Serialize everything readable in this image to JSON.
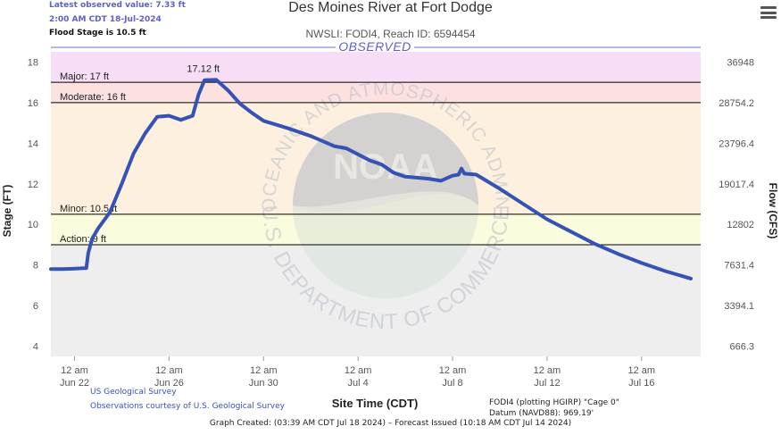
{
  "header": {
    "latest_observed_line1": "Latest observed value: 7.33 ft",
    "latest_observed_line2": "2:00 AM CDT 18-Jul-2024",
    "flood_stage_note": "Flood Stage is 10.5 ft"
  },
  "menu_icon": "hamburger-menu-icon",
  "chart_data": {
    "type": "line",
    "title": "Des Moines River at Fort Dodge",
    "subtitle": "NWSLI: FODI4, Reach ID: 6594454",
    "band_label": "OBSERVED",
    "xlabel": "Site Time (CDT)",
    "ylabel": "Stage (FT)",
    "y2label": "Flow (CFS)",
    "ylim": [
      3.5,
      18.5
    ],
    "xlim": [
      "2024-07-21 00:00",
      "2024-07-18 12:00"
    ],
    "x_ticks": [
      {
        "time": "2024-06-22 00:00",
        "line1": "12 am",
        "line2": "Jun 22"
      },
      {
        "time": "2024-06-26 00:00",
        "line1": "12 am",
        "line2": "Jun 26"
      },
      {
        "time": "2024-06-30 00:00",
        "line1": "12 am",
        "line2": "Jun 30"
      },
      {
        "time": "2024-07-04 00:00",
        "line1": "12 am",
        "line2": "Jul 4"
      },
      {
        "time": "2024-07-08 00:00",
        "line1": "12 am",
        "line2": "Jul 8"
      },
      {
        "time": "2024-07-12 00:00",
        "line1": "12 am",
        "line2": "Jul 12"
      },
      {
        "time": "2024-07-16 00:00",
        "line1": "12 am",
        "line2": "Jul 16"
      }
    ],
    "y_ticks": [
      4,
      6,
      8,
      10,
      12,
      14,
      16,
      18
    ],
    "y2_ticks": [
      {
        "stage": 4,
        "label": "666.3"
      },
      {
        "stage": 6,
        "label": "3394.1"
      },
      {
        "stage": 8,
        "label": "7631.4"
      },
      {
        "stage": 10,
        "label": "12802"
      },
      {
        "stage": 12,
        "label": "19017.4"
      },
      {
        "stage": 14,
        "label": "23796.4"
      },
      {
        "stage": 16,
        "label": "28754.2"
      },
      {
        "stage": 18,
        "label": "36948"
      }
    ],
    "flood_categories": [
      {
        "name": "Major",
        "label": "Major: 17 ft",
        "stage": 17,
        "color": "#f7ddf5"
      },
      {
        "name": "Moderate",
        "label": "Moderate: 16 ft",
        "stage": 16,
        "color": "#fde1e1"
      },
      {
        "name": "Minor",
        "label": "Minor: 10.5 ft",
        "stage": 10.5,
        "color": "#fdf0de"
      },
      {
        "name": "Action",
        "label": "Action: 9 ft",
        "stage": 9,
        "color": "#fbfbdd"
      }
    ],
    "below_action_color": "#eeeeee",
    "line_color": "#3552b5",
    "peak_label": "17.12 ft",
    "peak": {
      "time": "2024-06-27 09:00",
      "stage": 17.12
    },
    "series": [
      {
        "points": [
          [
            "2024-06-21 00:00",
            7.8
          ],
          [
            "2024-06-21 12:00",
            7.8
          ],
          [
            "2024-06-22 00:00",
            7.82
          ],
          [
            "2024-06-22 12:00",
            7.85
          ],
          [
            "2024-06-22 14:00",
            8.6
          ],
          [
            "2024-06-22 18:00",
            9.3
          ],
          [
            "2024-06-23 00:00",
            9.8
          ],
          [
            "2024-06-23 12:00",
            10.6
          ],
          [
            "2024-06-24 00:00",
            12.0
          ],
          [
            "2024-06-24 12:00",
            13.5
          ],
          [
            "2024-06-25 00:00",
            14.5
          ],
          [
            "2024-06-25 12:00",
            15.3
          ],
          [
            "2024-06-26 00:00",
            15.35
          ],
          [
            "2024-06-26 12:00",
            15.15
          ],
          [
            "2024-06-27 00:00",
            15.35
          ],
          [
            "2024-06-27 06:00",
            16.4
          ],
          [
            "2024-06-27 12:00",
            17.1
          ],
          [
            "2024-06-28 00:00",
            17.12
          ],
          [
            "2024-06-28 12:00",
            16.6
          ],
          [
            "2024-06-29 00:00",
            15.95
          ],
          [
            "2024-06-29 12:00",
            15.5
          ],
          [
            "2024-06-30 00:00",
            15.1
          ],
          [
            "2024-07-01 00:00",
            14.75
          ],
          [
            "2024-07-02 00:00",
            14.35
          ],
          [
            "2024-07-03 00:00",
            13.85
          ],
          [
            "2024-07-03 12:00",
            13.75
          ],
          [
            "2024-07-04 00:00",
            13.45
          ],
          [
            "2024-07-04 12:00",
            13.15
          ],
          [
            "2024-07-05 00:00",
            12.95
          ],
          [
            "2024-07-05 12:00",
            12.55
          ],
          [
            "2024-07-06 00:00",
            12.35
          ],
          [
            "2024-07-07 00:00",
            12.25
          ],
          [
            "2024-07-07 12:00",
            12.15
          ],
          [
            "2024-07-08 00:00",
            12.4
          ],
          [
            "2024-07-08 06:00",
            12.45
          ],
          [
            "2024-07-08 09:00",
            12.75
          ],
          [
            "2024-07-08 12:00",
            12.5
          ],
          [
            "2024-07-09 00:00",
            12.45
          ],
          [
            "2024-07-10 00:00",
            11.75
          ],
          [
            "2024-07-11 00:00",
            11.0
          ],
          [
            "2024-07-12 00:00",
            10.25
          ],
          [
            "2024-07-13 00:00",
            9.65
          ],
          [
            "2024-07-14 00:00",
            9.05
          ],
          [
            "2024-07-15 00:00",
            8.55
          ],
          [
            "2024-07-16 00:00",
            8.1
          ],
          [
            "2024-07-17 00:00",
            7.7
          ],
          [
            "2024-07-18 02:00",
            7.33
          ]
        ]
      }
    ]
  },
  "credits": {
    "usgs": "US Geological Survey",
    "observations": "Observations courtesy of U.S. Geological Survey",
    "plotting": "FODI4 (plotting HGIRP) \"Cage 0\"",
    "datum": "Datum (NAVD88): 969.19'",
    "created": "Graph Created: (03:39 AM CDT Jul 18 2024) – Forecast Issued (10:18 AM CDT Jul 14 2024)"
  },
  "watermark": {
    "ring_text": "NATIONAL OCEANIC AND ATMOSPHERIC ADMINISTRATION",
    "bottom_text": "U.S. DEPARTMENT OF COMMERCE",
    "logo_text": "NOAA"
  }
}
